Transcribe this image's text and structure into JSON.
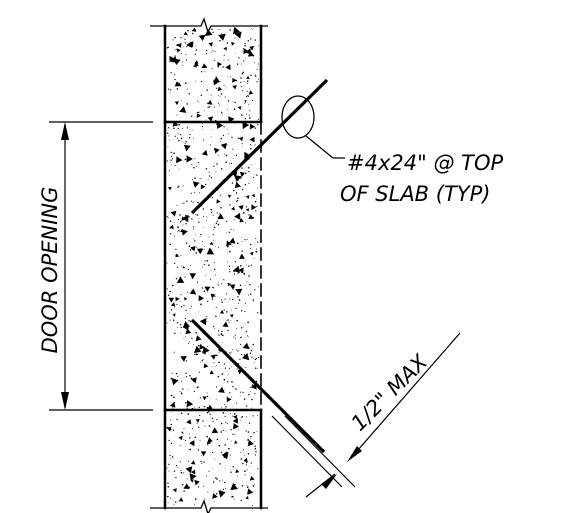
{
  "labels": {
    "door_opening": "DOOR OPENING",
    "callout_line1": "#4x24\" @ TOP",
    "callout_line2": "OF SLAB (TYP)",
    "clearance": "1/2\" MAX"
  },
  "colors": {
    "line": "#000000",
    "background": "#ffffff"
  }
}
